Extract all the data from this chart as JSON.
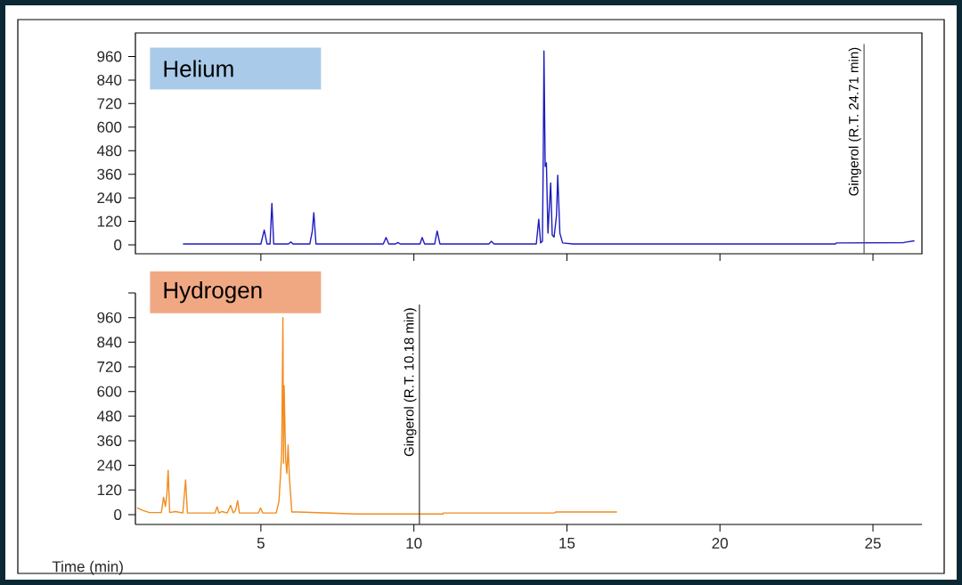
{
  "chart_data": [
    {
      "type": "line",
      "title": "Helium",
      "color": "#1c1cc0",
      "x": [
        2.47,
        5.0,
        5.11,
        5.2,
        5.3,
        5.33,
        5.36,
        5.42,
        5.9,
        5.98,
        6.05,
        6.6,
        6.68,
        6.73,
        6.8,
        9.0,
        9.09,
        9.18,
        9.4,
        9.48,
        9.55,
        10.2,
        10.27,
        10.35,
        10.68,
        10.76,
        10.85,
        12.45,
        12.53,
        12.62,
        14.0,
        14.08,
        14.14,
        14.2,
        14.23,
        14.25,
        14.29,
        14.33,
        14.38,
        14.47,
        14.52,
        14.58,
        14.66,
        14.7,
        14.77,
        14.86,
        15.2,
        23.78,
        23.8,
        26.0,
        26.34
      ],
      "values": [
        5,
        5,
        76,
        5,
        5,
        110,
        212,
        5,
        5,
        15,
        5,
        5,
        70,
        164,
        5,
        5,
        38,
        5,
        5,
        12,
        5,
        5,
        38,
        5,
        5,
        71,
        5,
        5,
        18,
        5,
        5,
        131,
        10,
        20,
        489,
        988,
        400,
        418,
        60,
        316,
        50,
        40,
        150,
        355,
        60,
        10,
        5,
        5,
        10,
        12,
        21
      ],
      "xlim": [
        0.9,
        26.6
      ],
      "xticks": [
        5,
        10,
        15,
        20,
        25
      ],
      "ylim": [
        -45,
        1080
      ],
      "yticks": [
        0,
        120,
        240,
        360,
        480,
        600,
        720,
        840,
        960
      ],
      "tick_labels": "y",
      "ref_lines": [
        {
          "axis": "x",
          "value": 24.71,
          "label": "Gingerol (R.T. 24.71 min)",
          "color": "#555555"
        }
      ]
    },
    {
      "type": "line",
      "title": "Hydrogen",
      "xlabel": "Time (min)",
      "color": "#f28c1e",
      "x": [
        0.97,
        1.15,
        1.36,
        1.75,
        1.82,
        1.88,
        1.93,
        1.97,
        2.02,
        2.21,
        2.45,
        2.54,
        2.6,
        3.5,
        3.57,
        3.63,
        3.73,
        3.9,
        4.01,
        4.1,
        4.17,
        4.24,
        4.3,
        4.92,
        4.99,
        5.06,
        5.5,
        5.59,
        5.64,
        5.68,
        5.72,
        5.74,
        5.76,
        5.81,
        5.85,
        5.89,
        5.93,
        6.01,
        6.2,
        8.14,
        10.95,
        10.96,
        14.6,
        14.63,
        16.62
      ],
      "values": [
        32,
        20,
        10,
        10,
        85,
        40,
        100,
        216,
        10,
        15,
        8,
        169,
        8,
        8,
        38,
        8,
        15,
        8,
        45,
        8,
        20,
        68,
        8,
        8,
        32,
        8,
        8,
        64,
        187,
        300,
        960,
        250,
        628,
        266,
        200,
        339,
        187,
        13,
        13,
        3,
        3,
        8,
        8,
        13,
        13
      ],
      "xlim": [
        0.9,
        26.6
      ],
      "xticks": [
        5,
        10,
        15,
        20,
        25
      ],
      "ylim": [
        -48,
        1080
      ],
      "yticks": [
        0,
        120,
        240,
        360,
        480,
        600,
        720,
        840,
        960,
        {
          "value": 1080,
          "label": null
        }
      ],
      "ref_lines": [
        {
          "axis": "x",
          "value": 10.18,
          "label": "Gingerol (R.T. 10.18 min)",
          "color": "#333333"
        }
      ]
    }
  ]
}
